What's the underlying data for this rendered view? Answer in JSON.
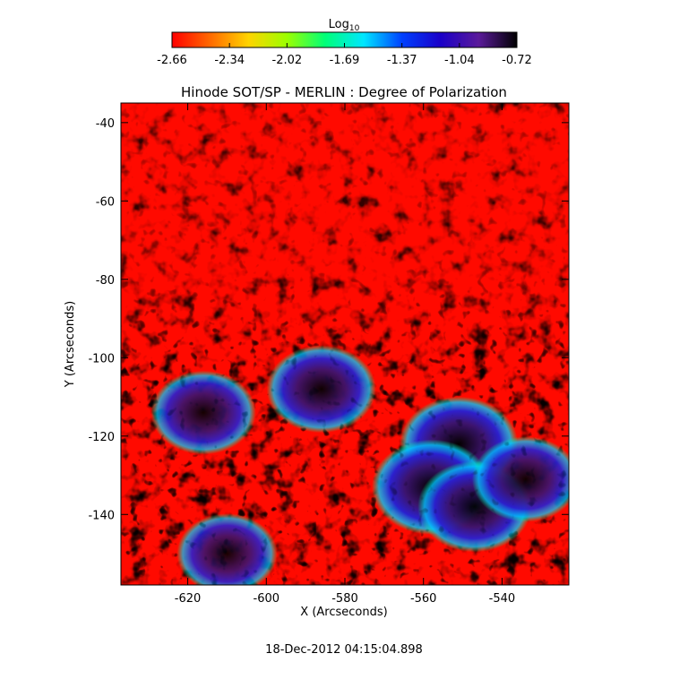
{
  "colorbar": {
    "label": "Log",
    "label_sub": "10",
    "ticks": [
      "-2.66",
      "-2.34",
      "-2.02",
      "-1.69",
      "-1.37",
      "-1.04",
      "-0.72"
    ],
    "range": [
      -2.66,
      -0.72
    ],
    "colormap": [
      "#ff0000",
      "#ff6a00",
      "#ffd400",
      "#9cff00",
      "#00ff78",
      "#00e6ff",
      "#0040ff",
      "#1a00c8",
      "#5a1a9a",
      "#000000"
    ]
  },
  "chart_data": {
    "type": "heatmap",
    "title": "Hinode SOT/SP - MERLIN : Degree of Polarization",
    "xlabel": "X (Arcseconds)",
    "ylabel": "Y (Arcseconds)",
    "xlim": [
      -637,
      -523
    ],
    "ylim": [
      -158,
      -35
    ],
    "x_ticks": [
      -620,
      -600,
      -580,
      -560,
      -540
    ],
    "y_ticks": [
      -40,
      -60,
      -80,
      -100,
      -120,
      -140
    ],
    "x_tick_labels": [
      "-620",
      "-600",
      "-580",
      "-560",
      "-540"
    ],
    "y_tick_labels": [
      "-40",
      "-60",
      "-80",
      "-100",
      "-120",
      "-140"
    ],
    "value_range": [
      -2.66,
      -0.72
    ],
    "features": [
      {
        "x": -551,
        "y": -122,
        "value": -0.8
      },
      {
        "x": -558,
        "y": -133,
        "value": -0.78
      },
      {
        "x": -547,
        "y": -138,
        "value": -0.9
      },
      {
        "x": -586,
        "y": -108,
        "value": -1.0
      },
      {
        "x": -616,
        "y": -114,
        "value": -1.1
      },
      {
        "x": -534,
        "y": -131,
        "value": -1.05
      },
      {
        "x": -610,
        "y": -150,
        "value": -1.2
      }
    ]
  },
  "footer": {
    "timestamp": "18-Dec-2012 04:15:04.898"
  }
}
